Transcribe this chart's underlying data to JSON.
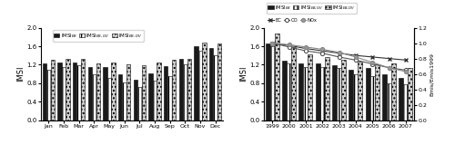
{
  "months": [
    "Jan",
    "Feb",
    "Mar",
    "Apr",
    "May",
    "Jun",
    "Jul",
    "Aug",
    "Sep",
    "Oct",
    "Nov",
    "Dec"
  ],
  "imsi_eb": [
    1.22,
    1.25,
    1.25,
    1.15,
    1.15,
    1.0,
    0.88,
    1.02,
    1.17,
    1.32,
    1.6,
    1.57
  ],
  "imsi_ebgv": [
    1.1,
    1.15,
    1.18,
    1.0,
    0.92,
    0.82,
    0.72,
    0.85,
    0.95,
    1.2,
    1.5,
    1.4
  ],
  "imsi_ebdv": [
    1.3,
    1.32,
    1.32,
    1.22,
    1.25,
    1.2,
    1.18,
    1.25,
    1.3,
    1.32,
    1.68,
    1.65
  ],
  "years": [
    1999,
    2000,
    2001,
    2002,
    2003,
    2004,
    2005,
    2006,
    2007
  ],
  "ann_eb": [
    1.65,
    1.28,
    1.23,
    1.22,
    1.18,
    1.1,
    1.12,
    1.0,
    0.92
  ],
  "ann_ebgv": [
    1.6,
    1.22,
    1.15,
    1.15,
    1.13,
    1.0,
    0.95,
    0.8,
    0.78
  ],
  "ann_ebdv": [
    1.88,
    1.58,
    1.43,
    1.37,
    1.3,
    1.27,
    1.2,
    1.22,
    1.13
  ],
  "ec": [
    1.0,
    0.97,
    0.93,
    0.9,
    0.87,
    0.84,
    0.82,
    0.8,
    0.78
  ],
  "co": [
    1.0,
    0.95,
    0.9,
    0.87,
    0.82,
    0.78,
    0.73,
    0.68,
    0.65
  ],
  "nox": [
    1.0,
    0.98,
    0.95,
    0.92,
    0.88,
    0.82,
    0.75,
    0.68,
    0.63
  ],
  "ylim_left": [
    0.0,
    2.0
  ],
  "ylim_right": [
    0.0,
    1.2
  ],
  "ylabel_left": "IMSI",
  "ylabel_right": "Emis/Emis1999",
  "bar_width": 0.27
}
